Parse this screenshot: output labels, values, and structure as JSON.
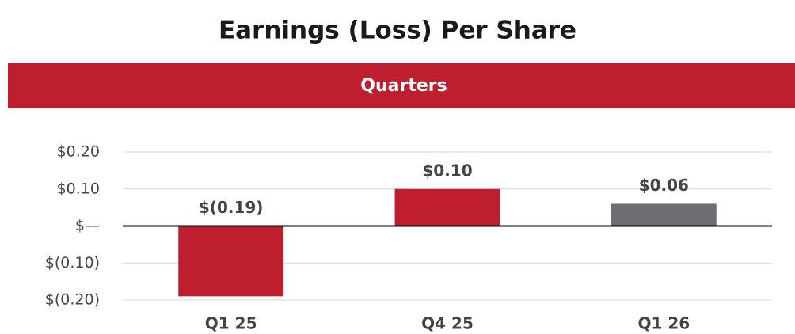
{
  "chart_data": {
    "type": "bar",
    "title": "Earnings (Loss) Per Share",
    "banner": "Quarters",
    "categories": [
      "Q1 25",
      "Q4 25",
      "Q1 26"
    ],
    "values": [
      -0.19,
      0.1,
      0.06
    ],
    "value_labels": [
      "$(0.19)",
      "$0.10",
      "$0.06"
    ],
    "colors": [
      "#be1e2d",
      "#be1e2d",
      "#6d6e71"
    ],
    "ylim": [
      -0.2,
      0.2
    ],
    "yticks": [
      {
        "value": 0.2,
        "label": "$0.20"
      },
      {
        "value": 0.1,
        "label": "$0.10"
      },
      {
        "value": 0,
        "label": "$—"
      },
      {
        "value": -0.1,
        "label": "$(0.10)"
      },
      {
        "value": -0.2,
        "label": "$(0.20)"
      }
    ],
    "grid": true
  }
}
